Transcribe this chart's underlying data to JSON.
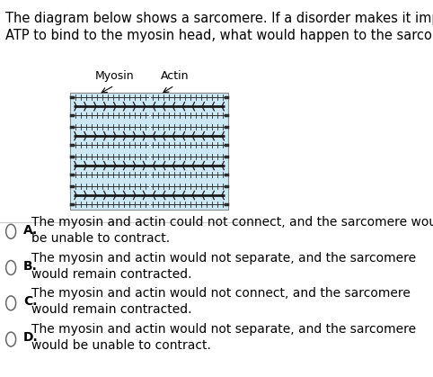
{
  "question_text": "The diagram below shows a sarcomere. If a disorder makes it impossible for\nATP to bind to the myosin head, what would happen to the sarcomere?",
  "question_fontsize": 10.5,
  "diagram_label_myosin": "Myosin",
  "diagram_label_actin": "Actin",
  "diagram_bg_color": "#cce8f4",
  "diagram_border_color": "#888888",
  "choices": [
    {
      "letter": "A",
      "text": "The myosin and actin could not connect, and the sarcomere would\nbe unable to contract."
    },
    {
      "letter": "B",
      "text": "The myosin and actin would not separate, and the sarcomere\nwould remain contracted."
    },
    {
      "letter": "C",
      "text": "The myosin and actin would not connect, and the sarcomere\nwould remain contracted."
    },
    {
      "letter": "D",
      "text": "The myosin and actin would not separate, and the sarcomere\nwould be unable to contract."
    }
  ],
  "choice_fontsize": 10,
  "bg_color": "#ffffff",
  "text_color": "#000000",
  "divider_color": "#cccccc",
  "actin_color": "#2a2a2a",
  "myosin_color": "#1a1a1a"
}
